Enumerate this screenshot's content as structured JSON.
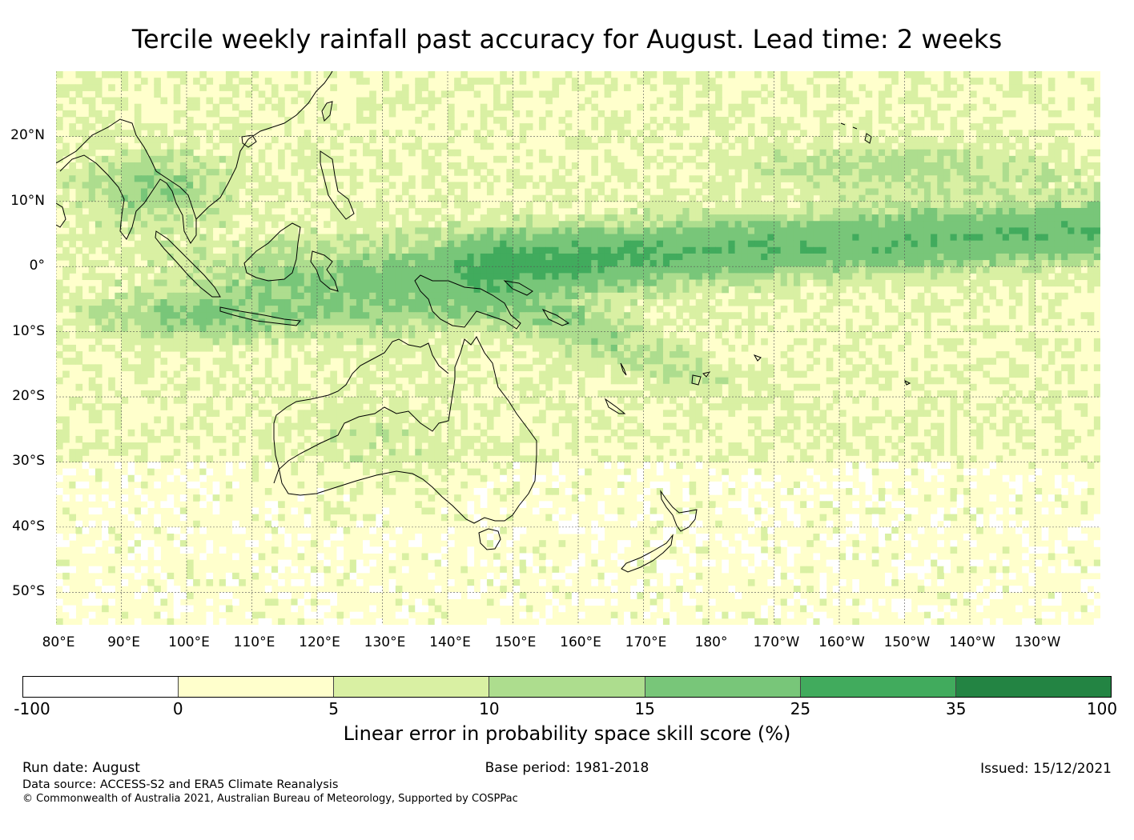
{
  "title": "Tercile weekly rainfall past accuracy for August. Lead time: 2 weeks",
  "map": {
    "lon_range": [
      80,
      240
    ],
    "lat_range": [
      -55,
      30
    ],
    "lat_ticks": [
      {
        "value": 20,
        "label": "20°N"
      },
      {
        "value": 10,
        "label": "10°N"
      },
      {
        "value": 0,
        "label": "0°"
      },
      {
        "value": -10,
        "label": "10°S"
      },
      {
        "value": -20,
        "label": "20°S"
      },
      {
        "value": -30,
        "label": "30°S"
      },
      {
        "value": -40,
        "label": "40°S"
      },
      {
        "value": -50,
        "label": "50°S"
      }
    ],
    "lon_ticks": [
      {
        "value": 80,
        "label": "80°E"
      },
      {
        "value": 90,
        "label": "90°E"
      },
      {
        "value": 100,
        "label": "100°E"
      },
      {
        "value": 110,
        "label": "110°E"
      },
      {
        "value": 120,
        "label": "120°E"
      },
      {
        "value": 130,
        "label": "130°E"
      },
      {
        "value": 140,
        "label": "140°E"
      },
      {
        "value": 150,
        "label": "150°E"
      },
      {
        "value": 160,
        "label": "160°E"
      },
      {
        "value": 170,
        "label": "170°E"
      },
      {
        "value": 180,
        "label": "180°"
      },
      {
        "value": 190,
        "label": "170°W"
      },
      {
        "value": 200,
        "label": "160°W"
      },
      {
        "value": 210,
        "label": "150°W"
      },
      {
        "value": 220,
        "label": "140°W"
      },
      {
        "value": 230,
        "label": "130°W"
      }
    ]
  },
  "colorbar": {
    "label": "Linear error in probability space skill score (%)",
    "ticks": [
      "-100",
      "0",
      "5",
      "10",
      "15",
      "25",
      "35",
      "100"
    ],
    "colors": [
      "#ffffff",
      "#ffffcc",
      "#d9f0a3",
      "#addd8e",
      "#78c679",
      "#41ab5d",
      "#238443"
    ]
  },
  "footer": {
    "run_date": "Run date: August",
    "base_period": "Base period: 1981-2018",
    "issued": "Issued: 15/12/2021",
    "data_source": "Data source: ACCESS-S2 and ERA5 Climate Reanalysis",
    "copyright": "© Commonwealth of Australia 2021, Australian Bureau of Meteorology, Supported by COSPPac"
  }
}
